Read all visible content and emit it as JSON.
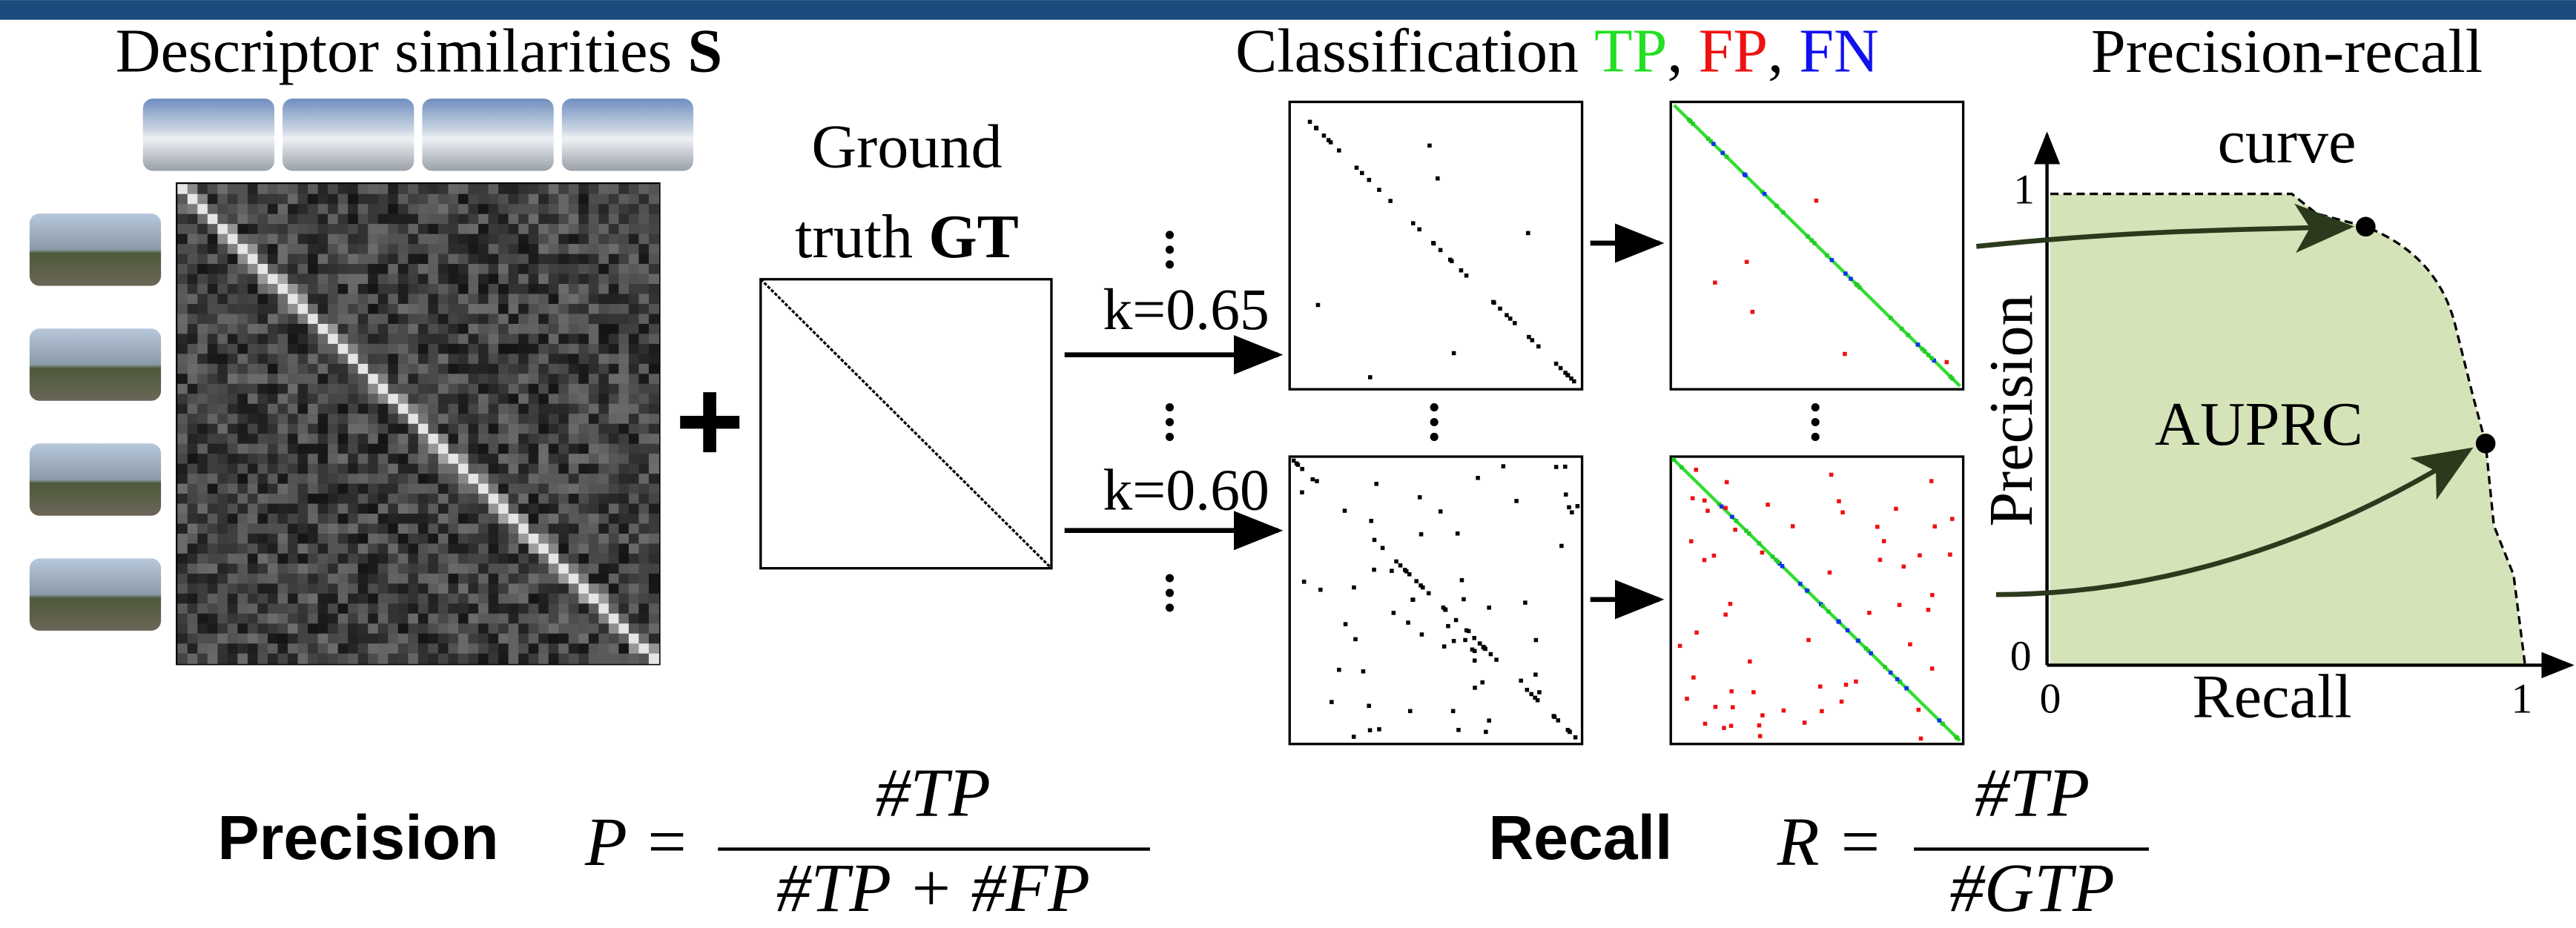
{
  "similarities": {
    "title": "Descriptor similarities",
    "symbol": "S"
  },
  "ground_truth": {
    "line1": "Ground",
    "line2": "truth",
    "symbol": "GT"
  },
  "thresholds": [
    "k=0.65",
    "k=0.60"
  ],
  "classification": {
    "title": "Classification",
    "tp": "TP",
    "fp": "FP",
    "fn": "FN"
  },
  "pr_curve": {
    "title_line1": "Precision-recall",
    "title_line2": "curve",
    "y_label": "Precision",
    "x_label": "Recall",
    "area_label": "AUPRC",
    "y_top": "1",
    "y_bottom": "0",
    "x_left": "0",
    "x_right": "1"
  },
  "formulas": {
    "precision": {
      "label": "Precision",
      "lhs": "P =",
      "numerator": "#TP",
      "denominator": "#TP + #FP"
    },
    "recall": {
      "label": "Recall",
      "lhs": "R =",
      "numerator": "#TP",
      "denominator": "#GTP"
    }
  }
}
